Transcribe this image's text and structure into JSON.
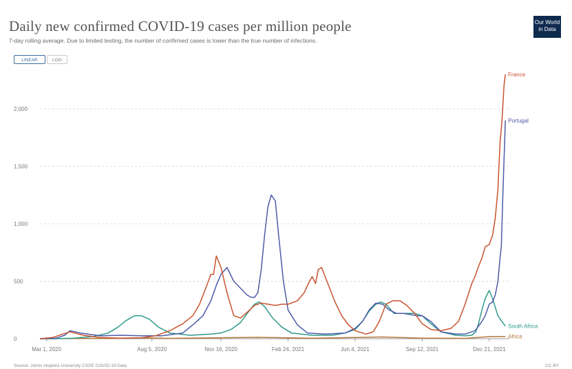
{
  "header": {
    "title": "Daily new confirmed COVID-19 cases per million people",
    "subtitle": "7-day rolling average. Due to limited testing, the number of confirmed cases is lower than the true number of infections.",
    "logo_text": "Our World in Data"
  },
  "controls": {
    "linear_label": "LINEAR",
    "log_label": "LOG"
  },
  "footer": {
    "source": "Source: Johns Hopkins University CSSE COVID-19 Data",
    "license": "CC BY"
  },
  "colors": {
    "France": "#c8522e",
    "Portugal": "#4c5aa8",
    "South Africa": "#2e9a8a",
    "Africa": "#b5763a",
    "grid": "#dddddd",
    "axis": "#999999"
  },
  "chart_data": {
    "type": "line",
    "title": "Daily new confirmed COVID-19 cases per million people",
    "subtitle": "7-day rolling average. Due to limited testing, the number of confirmed cases is lower than the true number of infections.",
    "xlabel": "",
    "ylabel": "",
    "ylim": [
      0,
      2300
    ],
    "xlim": [
      "2020-02-20",
      "2022-01-20"
    ],
    "yticks": [
      {
        "value": 0,
        "label": "0"
      },
      {
        "value": 500,
        "label": "500"
      },
      {
        "value": 1000,
        "label": "1,000"
      },
      {
        "value": 1500,
        "label": "1,500"
      },
      {
        "value": 2000,
        "label": "2,000"
      }
    ],
    "xticks": [
      {
        "date": "2020-03-01",
        "label": "Mar 1, 2020"
      },
      {
        "date": "2020-08-05",
        "label": "Aug 5, 2020"
      },
      {
        "date": "2020-11-16",
        "label": "Nov 16, 2020"
      },
      {
        "date": "2021-02-24",
        "label": "Feb 24, 2021"
      },
      {
        "date": "2021-06-04",
        "label": "Jun 4, 2021"
      },
      {
        "date": "2021-09-12",
        "label": "Sep 12, 2021"
      },
      {
        "date": "2021-12-21",
        "label": "Dec 21, 2021"
      }
    ],
    "grid": "horizontal",
    "legend": "inline labels at line ends",
    "series": [
      {
        "name": "France",
        "x": [
          "2020-02-20",
          "2020-03-10",
          "2020-03-25",
          "2020-04-05",
          "2020-04-25",
          "2020-05-20",
          "2020-06-20",
          "2020-07-20",
          "2020-08-10",
          "2020-09-01",
          "2020-09-20",
          "2020-10-05",
          "2020-10-15",
          "2020-10-25",
          "2020-11-01",
          "2020-11-05",
          "2020-11-09",
          "2020-11-16",
          "2020-11-25",
          "2020-12-05",
          "2020-12-15",
          "2020-12-25",
          "2021-01-05",
          "2021-01-15",
          "2021-01-25",
          "2021-02-05",
          "2021-02-15",
          "2021-02-24",
          "2021-03-10",
          "2021-03-20",
          "2021-03-28",
          "2021-04-01",
          "2021-04-06",
          "2021-04-10",
          "2021-04-15",
          "2021-04-25",
          "2021-05-05",
          "2021-05-15",
          "2021-05-25",
          "2021-06-04",
          "2021-06-20",
          "2021-07-01",
          "2021-07-10",
          "2021-07-20",
          "2021-07-30",
          "2021-08-10",
          "2021-08-20",
          "2021-09-01",
          "2021-09-12",
          "2021-09-25",
          "2021-10-10",
          "2021-10-25",
          "2021-11-05",
          "2021-11-15",
          "2021-11-25",
          "2021-12-01",
          "2021-12-05",
          "2021-12-10",
          "2021-12-15",
          "2021-12-21",
          "2021-12-26",
          "2021-12-30",
          "2022-01-03",
          "2022-01-06",
          "2022-01-09",
          "2022-01-12",
          "2022-01-14"
        ],
        "values": [
          0,
          10,
          40,
          60,
          30,
          10,
          5,
          8,
          25,
          70,
          130,
          200,
          300,
          450,
          560,
          560,
          720,
          620,
          400,
          200,
          180,
          230,
          290,
          310,
          300,
          290,
          300,
          300,
          330,
          400,
          500,
          540,
          480,
          600,
          620,
          470,
          320,
          200,
          120,
          70,
          40,
          60,
          150,
          300,
          330,
          330,
          290,
          220,
          130,
          80,
          70,
          90,
          150,
          300,
          480,
          560,
          630,
          700,
          800,
          820,
          900,
          1050,
          1300,
          1700,
          1900,
          2200,
          2300
        ]
      },
      {
        "name": "Portugal",
        "x": [
          "2020-02-20",
          "2020-03-15",
          "2020-03-28",
          "2020-04-05",
          "2020-04-20",
          "2020-05-20",
          "2020-06-20",
          "2020-07-20",
          "2020-08-20",
          "2020-09-20",
          "2020-10-05",
          "2020-10-20",
          "2020-11-01",
          "2020-11-10",
          "2020-11-16",
          "2020-11-25",
          "2020-12-05",
          "2020-12-15",
          "2020-12-25",
          "2020-12-31",
          "2021-01-05",
          "2021-01-10",
          "2021-01-15",
          "2021-01-20",
          "2021-01-25",
          "2021-01-30",
          "2021-02-05",
          "2021-02-10",
          "2021-02-17",
          "2021-02-24",
          "2021-03-10",
          "2021-03-25",
          "2021-04-20",
          "2021-05-20",
          "2021-06-04",
          "2021-06-15",
          "2021-06-25",
          "2021-07-05",
          "2021-07-15",
          "2021-07-25",
          "2021-08-05",
          "2021-08-15",
          "2021-08-25",
          "2021-09-05",
          "2021-09-12",
          "2021-09-25",
          "2021-10-10",
          "2021-11-01",
          "2021-11-15",
          "2021-11-30",
          "2021-12-10",
          "2021-12-15",
          "2021-12-21",
          "2021-12-26",
          "2021-12-30",
          "2022-01-03",
          "2022-01-06",
          "2022-01-08",
          "2022-01-10",
          "2022-01-12",
          "2022-01-14"
        ],
        "values": [
          0,
          5,
          30,
          70,
          50,
          25,
          30,
          25,
          25,
          50,
          120,
          200,
          330,
          480,
          560,
          620,
          500,
          440,
          380,
          360,
          360,
          400,
          600,
          900,
          1150,
          1250,
          1200,
          900,
          500,
          250,
          120,
          50,
          40,
          50,
          90,
          150,
          250,
          310,
          300,
          250,
          220,
          220,
          210,
          200,
          200,
          150,
          60,
          40,
          40,
          70,
          150,
          200,
          300,
          320,
          380,
          500,
          700,
          800,
          1200,
          1550,
          1900
        ]
      },
      {
        "name": "South Africa",
        "x": [
          "2020-02-20",
          "2020-03-10",
          "2020-04-10",
          "2020-05-10",
          "2020-06-01",
          "2020-06-15",
          "2020-06-28",
          "2020-07-10",
          "2020-07-20",
          "2020-08-01",
          "2020-08-15",
          "2020-09-01",
          "2020-10-01",
          "2020-11-01",
          "2020-11-16",
          "2020-12-01",
          "2020-12-15",
          "2020-12-25",
          "2021-01-05",
          "2021-01-12",
          "2021-01-20",
          "2021-02-01",
          "2021-02-15",
          "2021-03-01",
          "2021-04-01",
          "2021-05-01",
          "2021-05-20",
          "2021-06-04",
          "2021-06-15",
          "2021-06-25",
          "2021-07-05",
          "2021-07-12",
          "2021-07-20",
          "2021-08-01",
          "2021-08-10",
          "2021-08-20",
          "2021-09-01",
          "2021-09-12",
          "2021-09-25",
          "2021-10-10",
          "2021-11-01",
          "2021-11-15",
          "2021-11-25",
          "2021-12-01",
          "2021-12-05",
          "2021-12-10",
          "2021-12-15",
          "2021-12-21",
          "2021-12-26",
          "2022-01-03",
          "2022-01-10",
          "2022-01-14"
        ],
        "values": [
          0,
          0,
          5,
          20,
          50,
          100,
          160,
          200,
          200,
          170,
          100,
          50,
          30,
          40,
          50,
          80,
          140,
          220,
          300,
          320,
          280,
          180,
          100,
          50,
          30,
          30,
          50,
          80,
          150,
          240,
          300,
          320,
          300,
          220,
          220,
          220,
          220,
          200,
          130,
          60,
          30,
          25,
          30,
          60,
          130,
          250,
          350,
          420,
          350,
          200,
          140,
          110
        ]
      },
      {
        "name": "Africa",
        "x": [
          "2020-02-20",
          "2020-06-01",
          "2020-07-20",
          "2020-09-01",
          "2021-01-10",
          "2021-04-01",
          "2021-07-15",
          "2021-09-12",
          "2021-11-15",
          "2021-12-21",
          "2022-01-14"
        ],
        "values": [
          0,
          3,
          8,
          3,
          12,
          4,
          15,
          5,
          3,
          18,
          20
        ]
      }
    ],
    "line_labels": [
      {
        "series": "France",
        "text": "France"
      },
      {
        "series": "Portugal",
        "text": "Portugal"
      },
      {
        "series": "South Africa",
        "text": "South Africa"
      },
      {
        "series": "Africa",
        "text": "Africa"
      }
    ]
  }
}
